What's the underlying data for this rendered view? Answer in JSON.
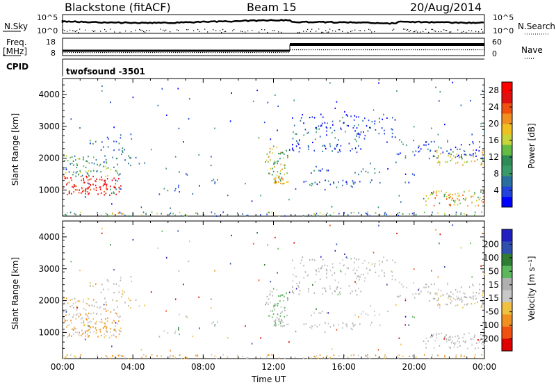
{
  "header": {
    "station": "Blackstone (fitACF)",
    "beam": "Beam 15",
    "date": "20/Aug/2014"
  },
  "top_panels": {
    "nsky_label": "N.Sky",
    "nsky_ticks": [
      "10^5",
      "10^0"
    ],
    "nsearch_label": "N.Search",
    "freq_label_line1": "Freq.",
    "freq_label_line2": "[MHz]",
    "freq_ticks": [
      "18",
      "8"
    ],
    "nave_ticks": [
      "60",
      "0"
    ],
    "nave_label": "Nave",
    "cpid_label": "CPID",
    "cpid_value": "twofsound -3501"
  },
  "colors": {
    "power": [
      "#0000ff",
      "#2244dd",
      "#2a6fa0",
      "#3a9a6a",
      "#2e8b57",
      "#66bb44",
      "#c8d43a",
      "#f0c020",
      "#f09020",
      "#f05010",
      "#e01010",
      "#ff0000"
    ],
    "velocity": [
      "#2020c0",
      "#3050b0",
      "#2e7d32",
      "#5cb85c",
      "#b0b0b0",
      "#c8c8c8",
      "#f0c040",
      "#f09020",
      "#f05010",
      "#e00000"
    ]
  },
  "chart_data": [
    {
      "type": "heatmap",
      "title": "",
      "xlabel": "",
      "ylabel": "Slant Range [km]",
      "x_ticks": [
        "00:00",
        "04:00",
        "08:00",
        "12:00",
        "16:00",
        "20:00",
        "00:00"
      ],
      "y_ticks": [
        1000,
        2000,
        3000,
        4000
      ],
      "ylim": [
        180,
        4500
      ],
      "colorbar": {
        "label": "Power [dB]",
        "ticks": [
          4,
          8,
          12,
          16,
          20,
          24,
          28
        ],
        "range": [
          0,
          30
        ]
      }
    },
    {
      "type": "heatmap",
      "title": "",
      "xlabel": "Time UT",
      "ylabel": "Slant Range [km]",
      "x_ticks": [
        "00:00",
        "04:00",
        "08:00",
        "12:00",
        "16:00",
        "20:00",
        "00:00"
      ],
      "y_ticks": [
        1000,
        2000,
        3000,
        4000
      ],
      "ylim": [
        180,
        4500
      ],
      "colorbar": {
        "label": "Velocity [m s⁻¹]",
        "ticks": [
          200,
          100,
          50,
          15,
          -15,
          -50,
          -100,
          -200
        ]
      }
    }
  ]
}
